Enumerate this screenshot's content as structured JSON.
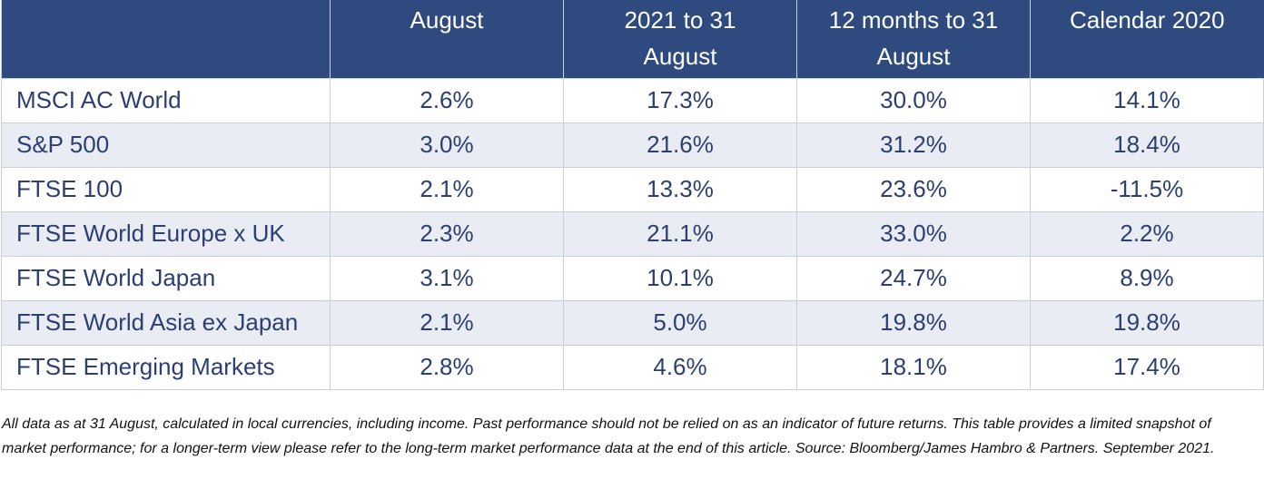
{
  "table": {
    "header": [
      "August",
      "2021 to 31 August",
      "12 months to 31 August",
      "Calendar 2020"
    ],
    "rows": [
      [
        "MSCI AC World",
        "2.6%",
        "17.3%",
        "30.0%",
        "14.1%"
      ],
      [
        "S&P 500",
        "3.0%",
        "21.6%",
        "31.2%",
        "18.4%"
      ],
      [
        "FTSE 100",
        "2.1%",
        "13.3%",
        "23.6%",
        "-11.5%"
      ],
      [
        "FTSE World Europe x UK",
        "2.3%",
        "21.1%",
        "33.0%",
        "2.2%"
      ],
      [
        "FTSE World Japan",
        "3.1%",
        "10.1%",
        "24.7%",
        "8.9%"
      ],
      [
        "FTSE World Asia ex Japan",
        "2.1%",
        "5.0%",
        "19.8%",
        "19.8%"
      ],
      [
        "FTSE Emerging Markets",
        "2.8%",
        "4.6%",
        "18.1%",
        "17.4%"
      ]
    ]
  },
  "footnote": "All data as at 31 August, calculated in local currencies, including income. Past performance should not be relied on as an indicator of future returns. This table provides a limited snapshot of market performance; for a longer-term view please refer to the long-term market performance data at the end of this article. Source: Bloomberg/James Hambro & Partners. September 2021."
}
